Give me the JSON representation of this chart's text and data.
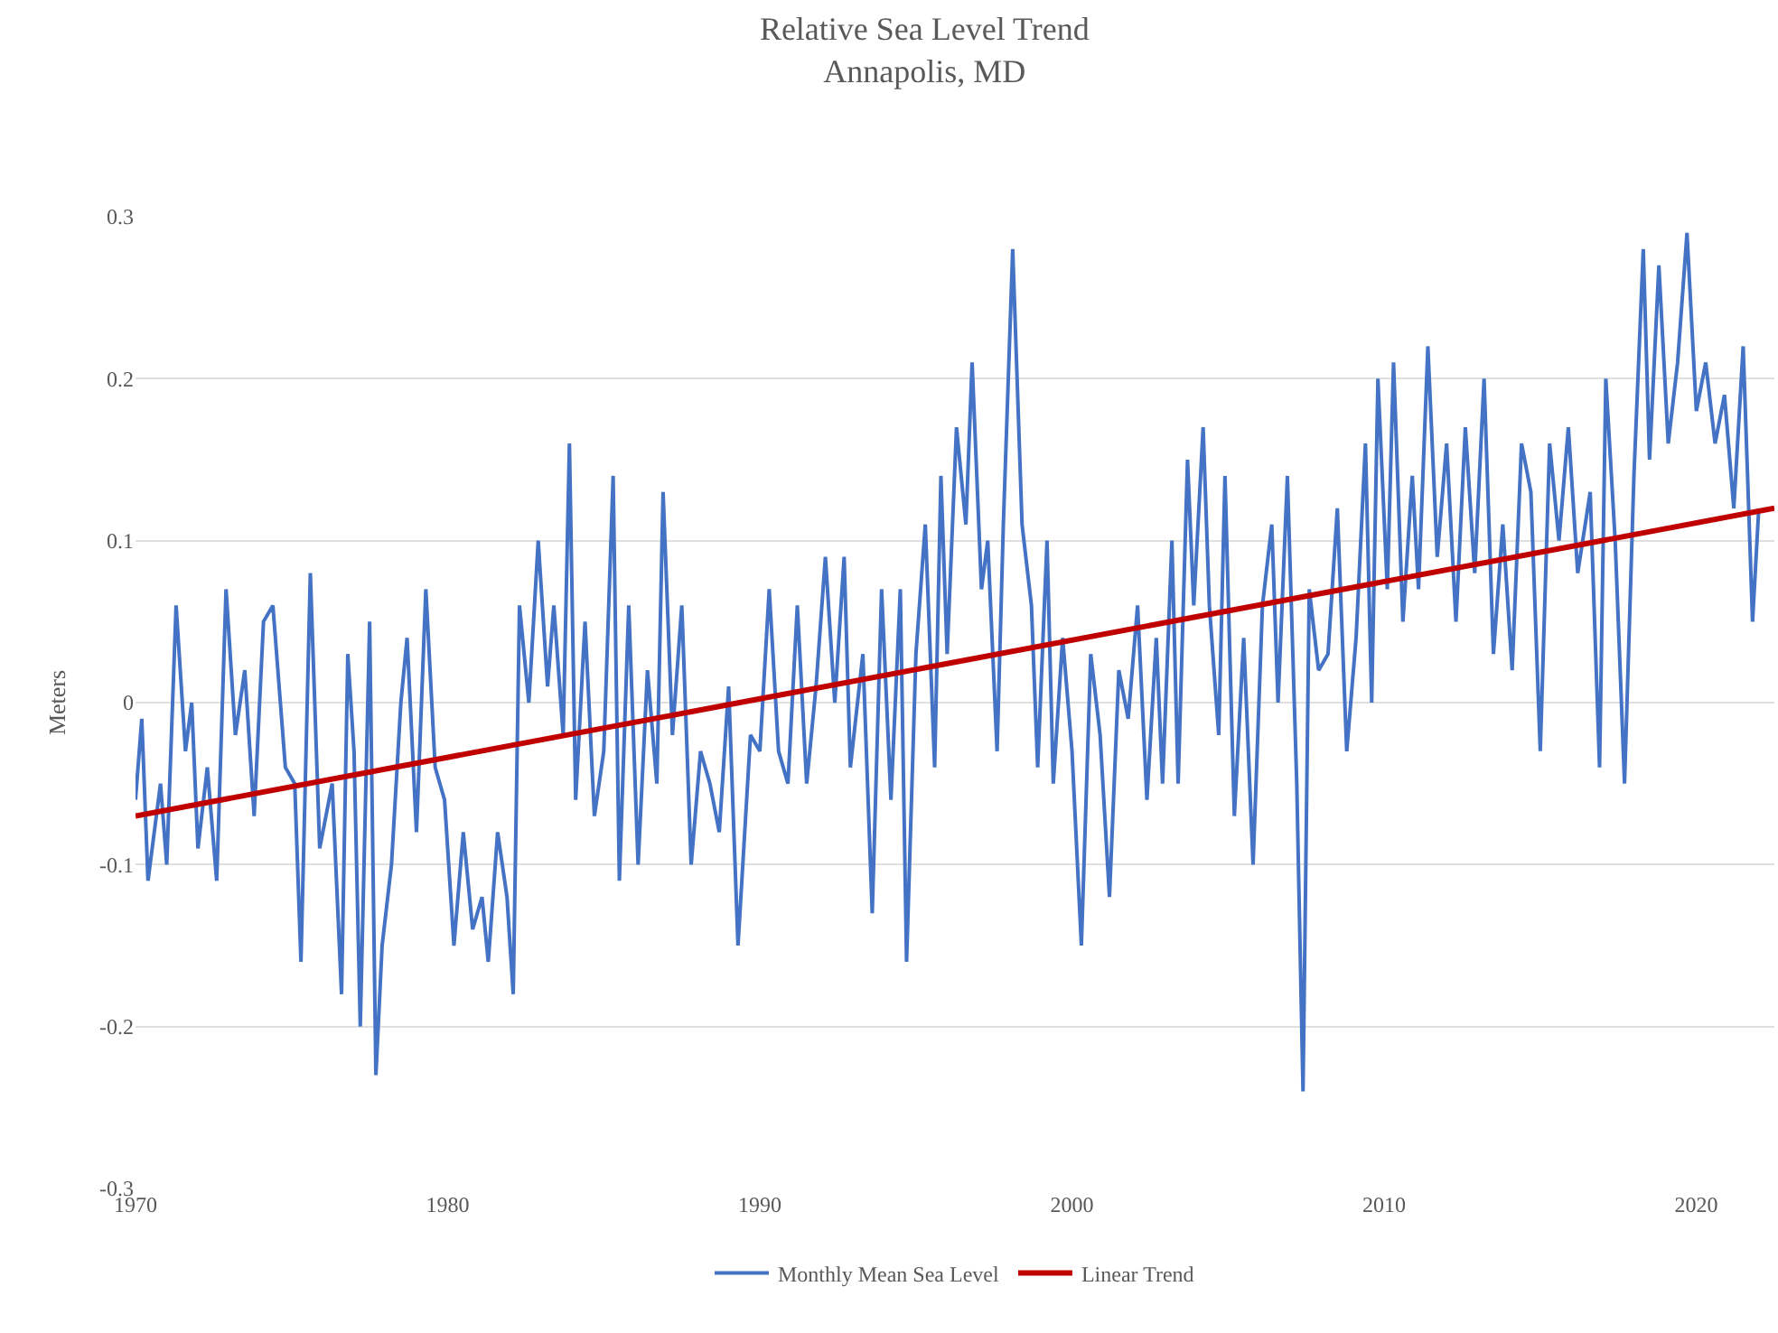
{
  "chart_data": {
    "type": "line",
    "title": "Relative Sea Level Trend",
    "subtitle": "Annapolis, MD",
    "ylabel": "Meters",
    "xlim": [
      1970,
      2022.5
    ],
    "xticks": [
      1970,
      1980,
      1990,
      2000,
      2010,
      2020
    ],
    "ylim": [
      -0.3,
      0.3
    ],
    "yticks": [
      -0.3,
      -0.2,
      -0.1,
      0,
      0.1,
      0.2,
      0.3
    ],
    "grid": "y",
    "legend": "bottom",
    "line_style": "solid",
    "marker": "none",
    "series": [
      {
        "name": "Monthly Mean Sea Level",
        "color": "#4472c4",
        "x": [
          1970.0,
          1970.2,
          1970.4,
          1970.8,
          1971.0,
          1971.3,
          1971.6,
          1971.8,
          1972.0,
          1972.3,
          1972.6,
          1972.9,
          1973.2,
          1973.5,
          1973.8,
          1974.1,
          1974.4,
          1974.8,
          1975.1,
          1975.3,
          1975.6,
          1975.9,
          1976.3,
          1976.6,
          1976.8,
          1977.0,
          1977.2,
          1977.5,
          1977.7,
          1977.9,
          1978.2,
          1978.5,
          1978.7,
          1979.0,
          1979.3,
          1979.6,
          1979.9,
          1980.2,
          1980.5,
          1980.8,
          1981.1,
          1981.3,
          1981.6,
          1981.9,
          1982.1,
          1982.3,
          1982.6,
          1982.9,
          1983.2,
          1983.4,
          1983.7,
          1983.9,
          1984.1,
          1984.4,
          1984.7,
          1985.0,
          1985.3,
          1985.5,
          1985.8,
          1986.1,
          1986.4,
          1986.7,
          1986.9,
          1987.2,
          1987.5,
          1987.8,
          1988.1,
          1988.4,
          1988.7,
          1989.0,
          1989.3,
          1989.7,
          1990.0,
          1990.3,
          1990.6,
          1990.9,
          1991.2,
          1991.5,
          1991.8,
          1992.1,
          1992.4,
          1992.7,
          1992.9,
          1993.3,
          1993.6,
          1993.9,
          1994.2,
          1994.5,
          1994.7,
          1995.0,
          1995.3,
          1995.6,
          1995.8,
          1996.0,
          1996.3,
          1996.6,
          1996.8,
          1997.1,
          1997.3,
          1997.6,
          1997.8,
          1998.1,
          1998.4,
          1998.7,
          1998.9,
          1999.2,
          1999.4,
          1999.7,
          2000.0,
          2000.3,
          2000.6,
          2000.9,
          2001.2,
          2001.5,
          2001.8,
          2002.1,
          2002.4,
          2002.7,
          2002.9,
          2003.2,
          2003.4,
          2003.7,
          2003.9,
          2004.2,
          2004.4,
          2004.7,
          2004.9,
          2005.2,
          2005.5,
          2005.8,
          2006.1,
          2006.4,
          2006.6,
          2006.9,
          2007.2,
          2007.4,
          2007.6,
          2007.9,
          2008.2,
          2008.5,
          2008.8,
          2009.1,
          2009.4,
          2009.6,
          2009.8,
          2010.1,
          2010.3,
          2010.6,
          2010.9,
          2011.1,
          2011.4,
          2011.7,
          2012.0,
          2012.3,
          2012.6,
          2012.9,
          2013.2,
          2013.5,
          2013.8,
          2014.1,
          2014.4,
          2014.7,
          2015.0,
          2015.3,
          2015.6,
          2015.9,
          2016.2,
          2016.6,
          2016.9,
          2017.1,
          2017.4,
          2017.7,
          2018.0,
          2018.3,
          2018.5,
          2018.8,
          2019.1,
          2019.4,
          2019.7,
          2020.0,
          2020.3,
          2020.6,
          2020.9,
          2021.2,
          2021.5,
          2021.8,
          2022.0
        ],
        "values": [
          -0.06,
          -0.01,
          -0.11,
          -0.05,
          -0.1,
          0.06,
          -0.03,
          0.0,
          -0.09,
          -0.04,
          -0.11,
          0.07,
          -0.02,
          0.02,
          -0.07,
          0.05,
          0.06,
          -0.04,
          -0.05,
          -0.16,
          0.08,
          -0.09,
          -0.05,
          -0.18,
          0.03,
          -0.03,
          -0.2,
          0.05,
          -0.23,
          -0.15,
          -0.1,
          0.0,
          0.04,
          -0.08,
          0.07,
          -0.04,
          -0.06,
          -0.15,
          -0.08,
          -0.14,
          -0.12,
          -0.16,
          -0.08,
          -0.12,
          -0.18,
          0.06,
          0.0,
          0.1,
          0.01,
          0.06,
          -0.02,
          0.16,
          -0.06,
          0.05,
          -0.07,
          -0.03,
          0.14,
          -0.11,
          0.06,
          -0.1,
          0.02,
          -0.05,
          0.13,
          -0.02,
          0.06,
          -0.1,
          -0.03,
          -0.05,
          -0.08,
          0.01,
          -0.15,
          -0.02,
          -0.03,
          0.07,
          -0.03,
          -0.05,
          0.06,
          -0.05,
          0.01,
          0.09,
          0.0,
          0.09,
          -0.04,
          0.03,
          -0.13,
          0.07,
          -0.06,
          0.07,
          -0.16,
          0.03,
          0.11,
          -0.04,
          0.14,
          0.03,
          0.17,
          0.11,
          0.21,
          0.07,
          0.1,
          -0.03,
          0.11,
          0.28,
          0.11,
          0.06,
          -0.04,
          0.1,
          -0.05,
          0.04,
          -0.03,
          -0.15,
          0.03,
          -0.02,
          -0.12,
          0.02,
          -0.01,
          0.06,
          -0.06,
          0.04,
          -0.05,
          0.1,
          -0.05,
          0.15,
          0.06,
          0.17,
          0.06,
          -0.02,
          0.14,
          -0.07,
          0.04,
          -0.1,
          0.06,
          0.11,
          0.0,
          0.14,
          -0.05,
          -0.24,
          0.07,
          0.02,
          0.03,
          0.12,
          -0.03,
          0.04,
          0.16,
          0.0,
          0.2,
          0.07,
          0.21,
          0.05,
          0.14,
          0.07,
          0.22,
          0.09,
          0.16,
          0.05,
          0.17,
          0.08,
          0.2,
          0.03,
          0.11,
          0.02,
          0.16,
          0.13,
          -0.03,
          0.16,
          0.1,
          0.17,
          0.08,
          0.13,
          -0.04,
          0.2,
          0.1,
          -0.05,
          0.14,
          0.28,
          0.15,
          0.27,
          0.16,
          0.21,
          0.29,
          0.18,
          0.21,
          0.16,
          0.19,
          0.12,
          0.22,
          0.05,
          0.12
        ]
      },
      {
        "name": "Linear Trend",
        "color": "#c00000",
        "x": [
          1970.0,
          2022.5
        ],
        "values": [
          -0.07,
          0.12
        ]
      }
    ]
  }
}
